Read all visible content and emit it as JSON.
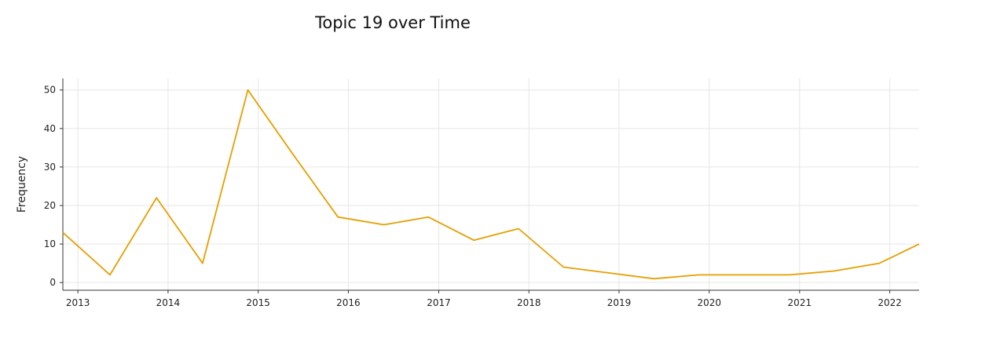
{
  "chart_data": {
    "type": "line",
    "title": "Topic 19 over Time",
    "xlabel": "",
    "ylabel": "Frequency",
    "grid": true,
    "x_ticks": [
      "2013",
      "2014",
      "2015",
      "2016",
      "2017",
      "2018",
      "2019",
      "2020",
      "2021",
      "2022"
    ],
    "y_ticks": [
      0,
      10,
      20,
      30,
      40,
      50
    ],
    "xlim": [
      "2012-11-01",
      "2022-04-30"
    ],
    "ylim": [
      -2,
      53
    ],
    "colors": {
      "line": "#E69F00"
    },
    "series": [
      {
        "x": [
          "2012-11-01",
          "2013-05-11",
          "2013-11-15",
          "2014-05-21",
          "2014-11-20",
          "2015-05-25",
          "2015-11-20",
          "2016-05-24",
          "2016-11-20",
          "2017-05-23",
          "2017-11-20",
          "2018-05-21",
          "2018-11-20",
          "2019-05-22",
          "2019-11-20",
          "2020-05-20",
          "2020-11-20",
          "2021-05-20",
          "2021-11-20",
          "2022-04-30"
        ],
        "values": [
          13,
          2,
          22,
          5,
          50,
          33,
          17,
          15,
          17,
          11,
          14,
          4,
          2.5,
          1,
          2,
          2,
          2,
          3,
          5,
          10
        ]
      }
    ]
  }
}
